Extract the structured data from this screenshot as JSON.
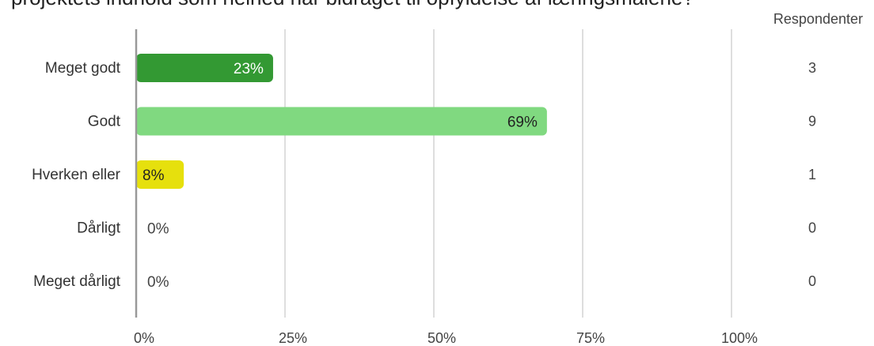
{
  "chart_data": {
    "type": "bar",
    "orientation": "horizontal",
    "title": "projektets indhold som helhed har bidraget til opfyldelse af læringsmålene?",
    "categories": [
      "Meget godt",
      "Godt",
      "Hverken eller",
      "Dårligt",
      "Meget dårligt"
    ],
    "values": [
      23,
      69,
      8,
      0,
      0
    ],
    "value_labels": [
      "23%",
      "69%",
      "8%",
      "0%",
      "0%"
    ],
    "respondents_header": "Respondenter",
    "respondents": [
      3,
      9,
      1,
      0,
      0
    ],
    "x_ticks": [
      "0%",
      "25%",
      "50%",
      "75%",
      "100%"
    ],
    "xlim": [
      0,
      100
    ],
    "grid": true,
    "colors": [
      "#339933",
      "#80d980",
      "#e6e00d",
      "#999999",
      "#999999"
    ]
  }
}
